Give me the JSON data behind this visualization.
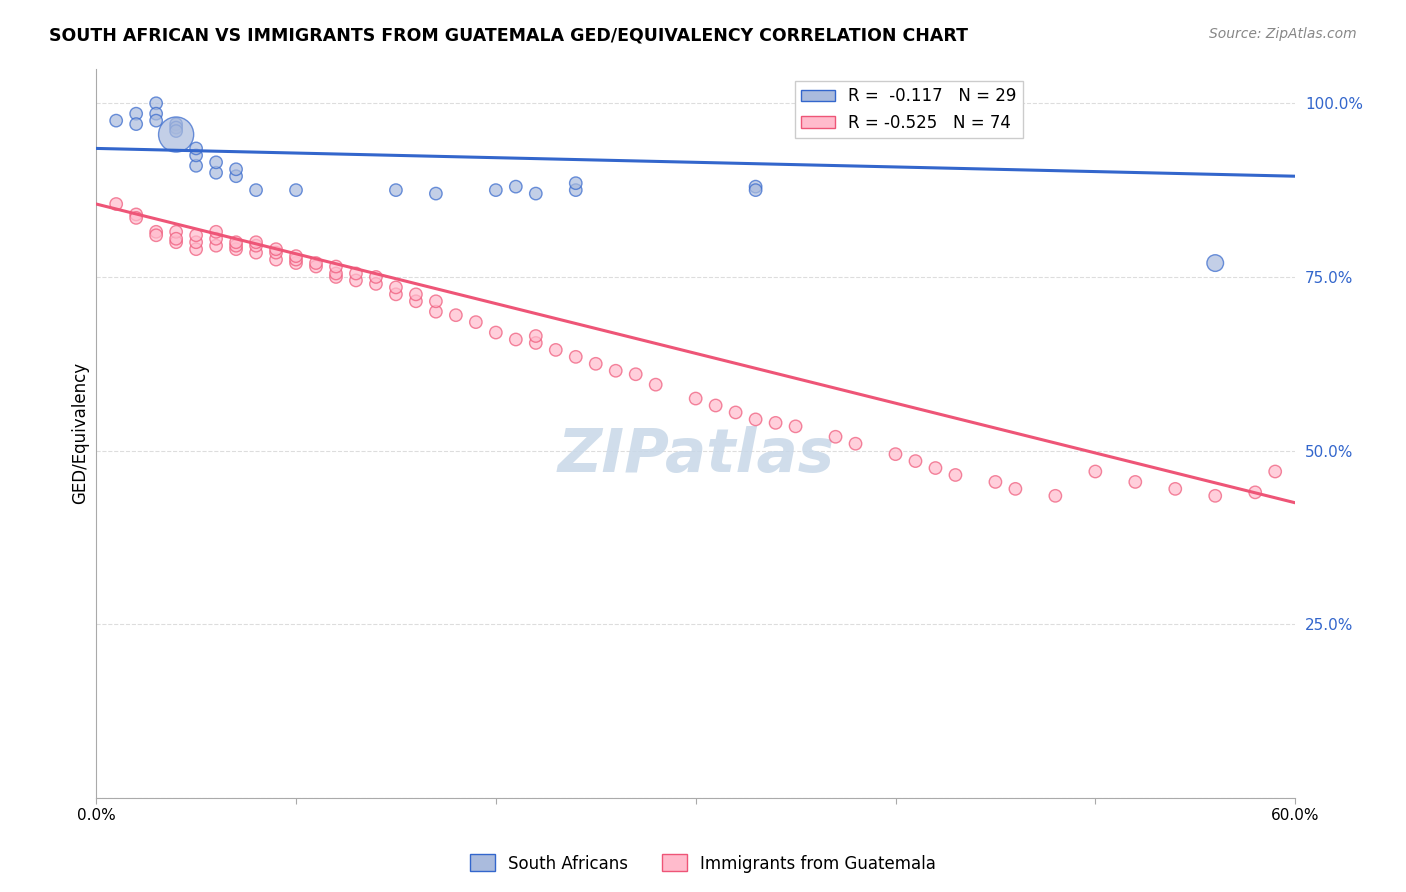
{
  "title": "SOUTH AFRICAN VS IMMIGRANTS FROM GUATEMALA GED/EQUIVALENCY CORRELATION CHART",
  "source": "Source: ZipAtlas.com",
  "ylabel": "GED/Equivalency",
  "xmin": 0.0,
  "xmax": 0.6,
  "ymin": 0.0,
  "ymax": 1.05,
  "yticks": [
    0.0,
    0.25,
    0.5,
    0.75,
    1.0
  ],
  "ytick_labels": [
    "",
    "25.0%",
    "50.0%",
    "75.0%",
    "100.0%"
  ],
  "xticks": [
    0.0,
    0.1,
    0.2,
    0.3,
    0.4,
    0.5,
    0.6
  ],
  "xtick_labels": [
    "0.0%",
    "",
    "",
    "",
    "",
    "",
    "60.0%"
  ],
  "blue_color": "#aabbdd",
  "pink_color": "#ffbbcc",
  "trend_blue": "#3366CC",
  "trend_pink": "#ee5577",
  "watermark_color": "#c8d8e8",
  "blue_scatter_x": [
    0.01,
    0.02,
    0.02,
    0.03,
    0.03,
    0.03,
    0.04,
    0.04,
    0.04,
    0.04,
    0.05,
    0.05,
    0.05,
    0.06,
    0.06,
    0.07,
    0.07,
    0.08,
    0.1,
    0.15,
    0.17,
    0.2,
    0.21,
    0.22,
    0.24,
    0.24,
    0.33,
    0.33,
    0.56
  ],
  "blue_scatter_y": [
    0.975,
    0.985,
    0.97,
    1.0,
    0.985,
    0.975,
    0.97,
    0.965,
    0.96,
    0.955,
    0.91,
    0.925,
    0.935,
    0.9,
    0.915,
    0.895,
    0.905,
    0.875,
    0.875,
    0.875,
    0.87,
    0.875,
    0.88,
    0.87,
    0.875,
    0.885,
    0.88,
    0.875,
    0.77
  ],
  "blue_scatter_sizes": [
    10,
    10,
    10,
    10,
    10,
    10,
    10,
    10,
    10,
    80,
    10,
    10,
    10,
    10,
    10,
    10,
    10,
    10,
    10,
    10,
    10,
    10,
    10,
    10,
    10,
    10,
    10,
    10,
    18
  ],
  "pink_scatter_x": [
    0.01,
    0.02,
    0.02,
    0.03,
    0.03,
    0.04,
    0.04,
    0.04,
    0.05,
    0.05,
    0.05,
    0.06,
    0.06,
    0.06,
    0.07,
    0.07,
    0.07,
    0.08,
    0.08,
    0.08,
    0.09,
    0.09,
    0.09,
    0.1,
    0.1,
    0.1,
    0.11,
    0.11,
    0.12,
    0.12,
    0.12,
    0.13,
    0.13,
    0.14,
    0.14,
    0.15,
    0.15,
    0.16,
    0.16,
    0.17,
    0.17,
    0.18,
    0.19,
    0.2,
    0.21,
    0.22,
    0.22,
    0.23,
    0.24,
    0.25,
    0.26,
    0.27,
    0.28,
    0.3,
    0.31,
    0.32,
    0.33,
    0.34,
    0.35,
    0.37,
    0.38,
    0.4,
    0.41,
    0.42,
    0.43,
    0.45,
    0.46,
    0.48,
    0.5,
    0.52,
    0.54,
    0.56,
    0.58,
    0.59
  ],
  "pink_scatter_y": [
    0.855,
    0.84,
    0.835,
    0.815,
    0.81,
    0.8,
    0.815,
    0.805,
    0.79,
    0.8,
    0.81,
    0.795,
    0.805,
    0.815,
    0.79,
    0.795,
    0.8,
    0.785,
    0.795,
    0.8,
    0.775,
    0.785,
    0.79,
    0.77,
    0.775,
    0.78,
    0.765,
    0.77,
    0.75,
    0.755,
    0.765,
    0.745,
    0.755,
    0.74,
    0.75,
    0.725,
    0.735,
    0.715,
    0.725,
    0.7,
    0.715,
    0.695,
    0.685,
    0.67,
    0.66,
    0.655,
    0.665,
    0.645,
    0.635,
    0.625,
    0.615,
    0.61,
    0.595,
    0.575,
    0.565,
    0.555,
    0.545,
    0.54,
    0.535,
    0.52,
    0.51,
    0.495,
    0.485,
    0.475,
    0.465,
    0.455,
    0.445,
    0.435,
    0.47,
    0.455,
    0.445,
    0.435,
    0.44,
    0.47
  ],
  "pink_scatter_sizes": [
    10,
    10,
    10,
    10,
    10,
    10,
    10,
    10,
    10,
    10,
    10,
    10,
    10,
    10,
    10,
    10,
    10,
    10,
    10,
    10,
    10,
    10,
    10,
    10,
    10,
    10,
    10,
    10,
    10,
    10,
    10,
    10,
    10,
    10,
    10,
    10,
    10,
    10,
    10,
    10,
    10,
    10,
    10,
    10,
    10,
    10,
    10,
    10,
    10,
    10,
    10,
    10,
    10,
    10,
    10,
    10,
    10,
    10,
    10,
    10,
    10,
    10,
    10,
    10,
    10,
    10,
    10,
    10,
    10,
    10,
    10,
    10,
    10,
    10
  ],
  "blue_trend_x": [
    0.0,
    0.6
  ],
  "blue_trend_y": [
    0.935,
    0.895
  ],
  "pink_trend_x": [
    0.0,
    0.6
  ],
  "pink_trend_y": [
    0.855,
    0.425
  ]
}
